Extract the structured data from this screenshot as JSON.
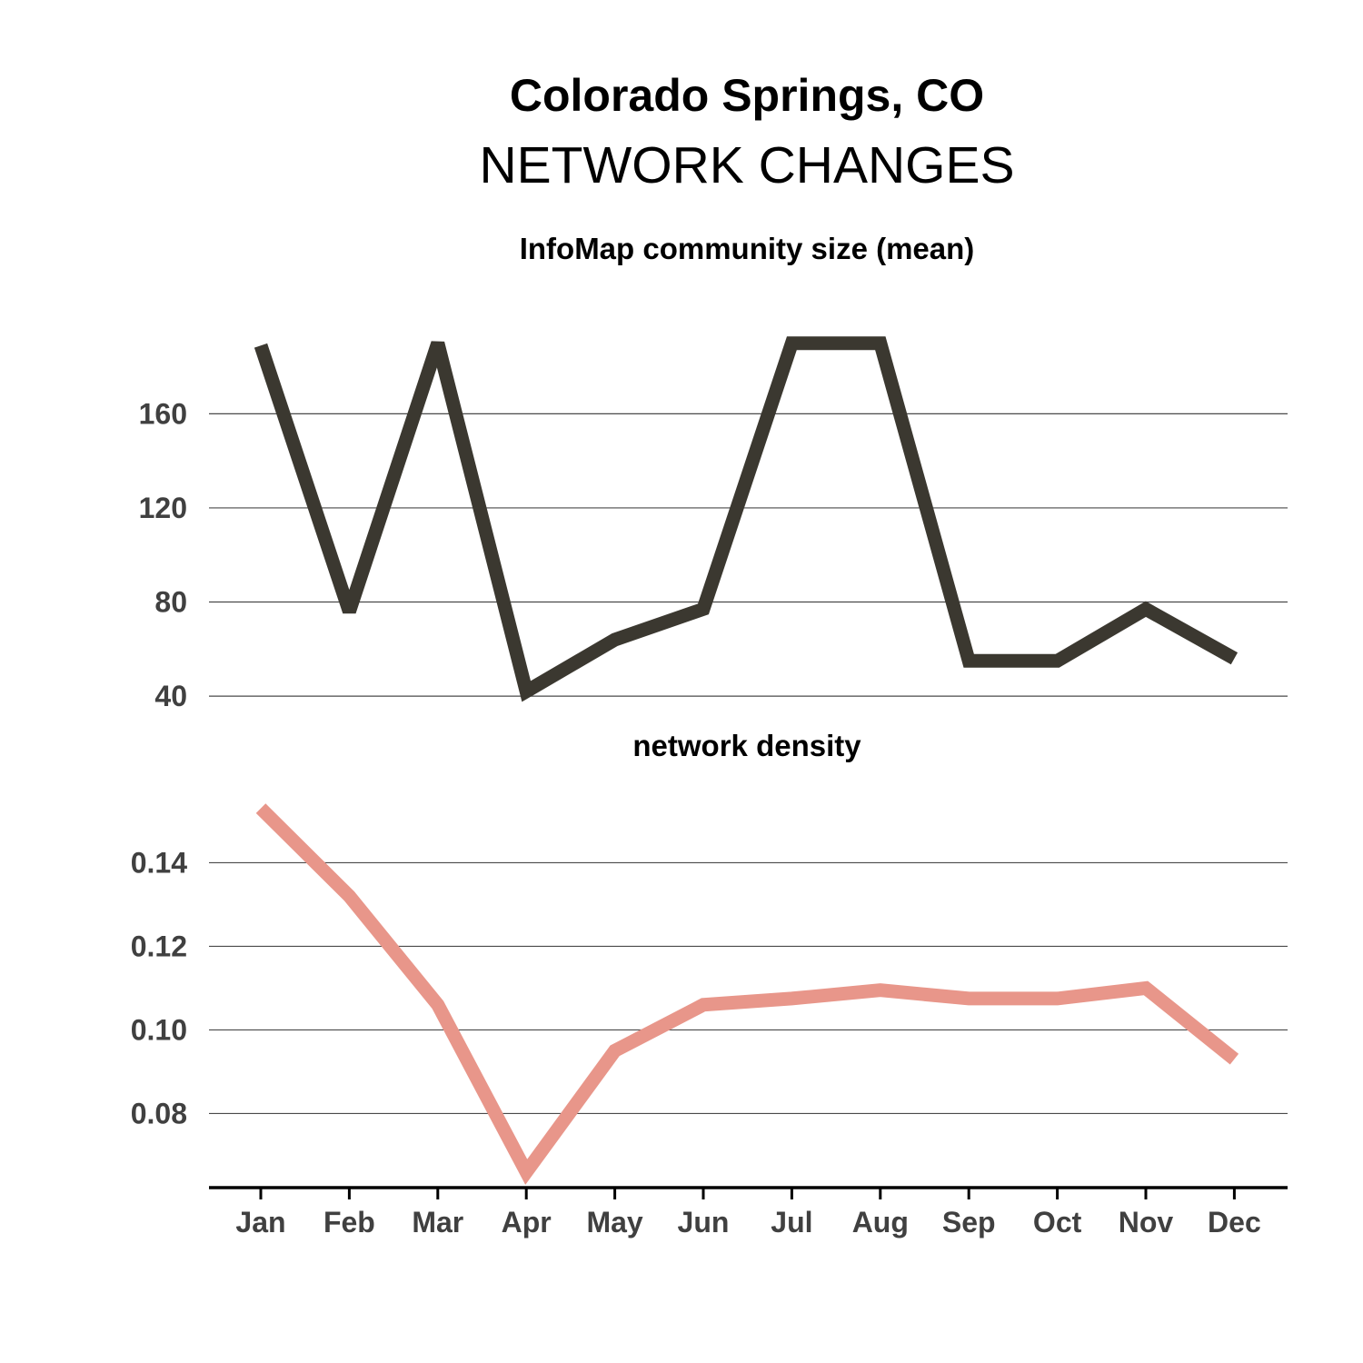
{
  "title": "Colorado Springs, CO",
  "subtitle": "NETWORK CHANGES",
  "colors": {
    "series_top": "#3b3830",
    "series_bottom": "#e8968a",
    "axis": "#000000"
  },
  "chart_data": [
    {
      "type": "line",
      "title": "InfoMap community size (mean)",
      "categories": [
        "Jan",
        "Feb",
        "Mar",
        "Apr",
        "May",
        "Jun",
        "Jul",
        "Aug",
        "Sep",
        "Oct",
        "Nov",
        "Dec"
      ],
      "values": [
        189,
        76,
        190,
        42,
        64,
        77,
        190,
        190,
        55,
        55,
        77,
        56
      ],
      "yticks": [
        40,
        80,
        120,
        160
      ],
      "ytick_labels": [
        "40",
        "80",
        "120",
        "160"
      ],
      "ylim": [
        30,
        220
      ],
      "xlabel": "",
      "ylabel": "",
      "grid": true
    },
    {
      "type": "line",
      "title": "network density",
      "categories": [
        "Jan",
        "Feb",
        "Mar",
        "Apr",
        "May",
        "Jun",
        "Jul",
        "Aug",
        "Sep",
        "Oct",
        "Nov",
        "Dec"
      ],
      "values": [
        0.153,
        0.132,
        0.106,
        0.066,
        0.095,
        0.106,
        0.1075,
        0.1095,
        0.1075,
        0.1075,
        0.11,
        0.093
      ],
      "yticks": [
        0.08,
        0.1,
        0.12,
        0.14
      ],
      "ytick_labels": [
        "0.08",
        "0.10",
        "0.12",
        "0.14"
      ],
      "ylim": [
        0.0627,
        0.1627
      ],
      "xlabel": "",
      "ylabel": "",
      "grid": true
    }
  ]
}
